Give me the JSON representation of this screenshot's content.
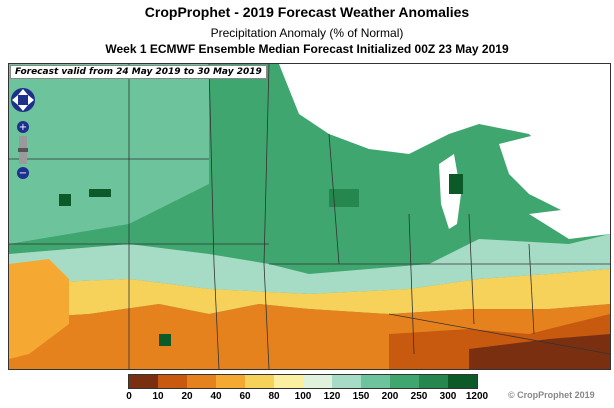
{
  "titles": {
    "main": "CropProphet - 2019 Forecast Weather Anomalies",
    "sub": "Precipitation Anomaly (% of Normal)",
    "desc": "Week 1 ECMWF Ensemble Median Forecast Initialized 00Z 23 May 2019"
  },
  "map": {
    "valid_text": "Forecast valid from 24 May 2019 to 30 May 2019",
    "controls": {
      "pan": "pan-control-icon",
      "zoom_in": "+",
      "zoom_out": "−"
    }
  },
  "legend": {
    "colors": [
      "#7a3010",
      "#c85a10",
      "#e6821e",
      "#f5a832",
      "#f7d25a",
      "#fbf0a0",
      "#e0f2dc",
      "#a6dcc6",
      "#6cc39c",
      "#3ea66e",
      "#25874e",
      "#0c5a28"
    ],
    "labels": [
      "0",
      "10",
      "20",
      "40",
      "60",
      "80",
      "100",
      "120",
      "150",
      "200",
      "250",
      "300",
      "1200"
    ]
  },
  "copyright": "© CropProphet 2019"
}
